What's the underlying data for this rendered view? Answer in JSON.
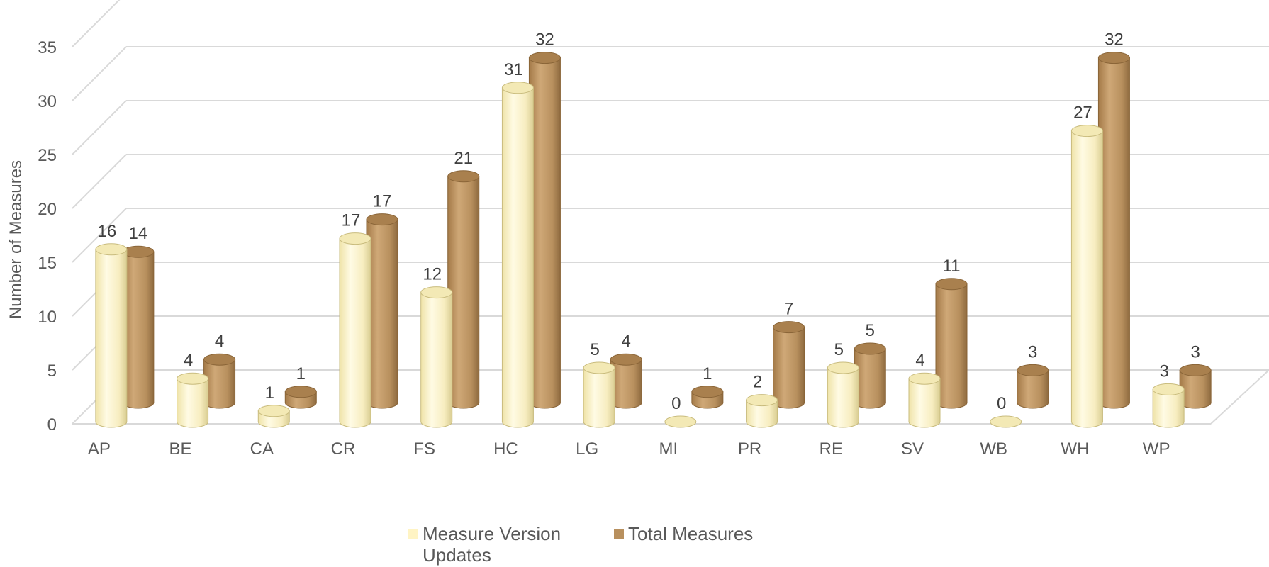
{
  "chart_data": {
    "type": "bar",
    "style": "3d-cylinder",
    "ylabel": "Number of Measures",
    "xlabel": "",
    "ylim": [
      0,
      35
    ],
    "yticks": [
      0,
      5,
      10,
      15,
      20,
      25,
      30,
      35
    ],
    "grid": true,
    "legend_position": "bottom",
    "categories": [
      "AP",
      "BE",
      "CA",
      "CR",
      "FS",
      "HC",
      "LG",
      "MI",
      "PR",
      "RE",
      "SV",
      "WB",
      "WH",
      "WP"
    ],
    "series": [
      {
        "name": "Measure Version Updates",
        "color": "#FFF4C4",
        "values": [
          16,
          4,
          1,
          17,
          12,
          31,
          5,
          0,
          2,
          5,
          4,
          0,
          27,
          3
        ]
      },
      {
        "name": "Total Measures",
        "color": "#B8905E",
        "values": [
          14,
          4,
          1,
          17,
          21,
          32,
          4,
          1,
          7,
          5,
          11,
          3,
          32,
          3
        ]
      }
    ]
  },
  "legend": {
    "items": [
      {
        "label": "Measure Version\nUpdates",
        "color": "#FFF4C4"
      },
      {
        "label": "Total Measures",
        "color": "#B8905E"
      }
    ]
  }
}
